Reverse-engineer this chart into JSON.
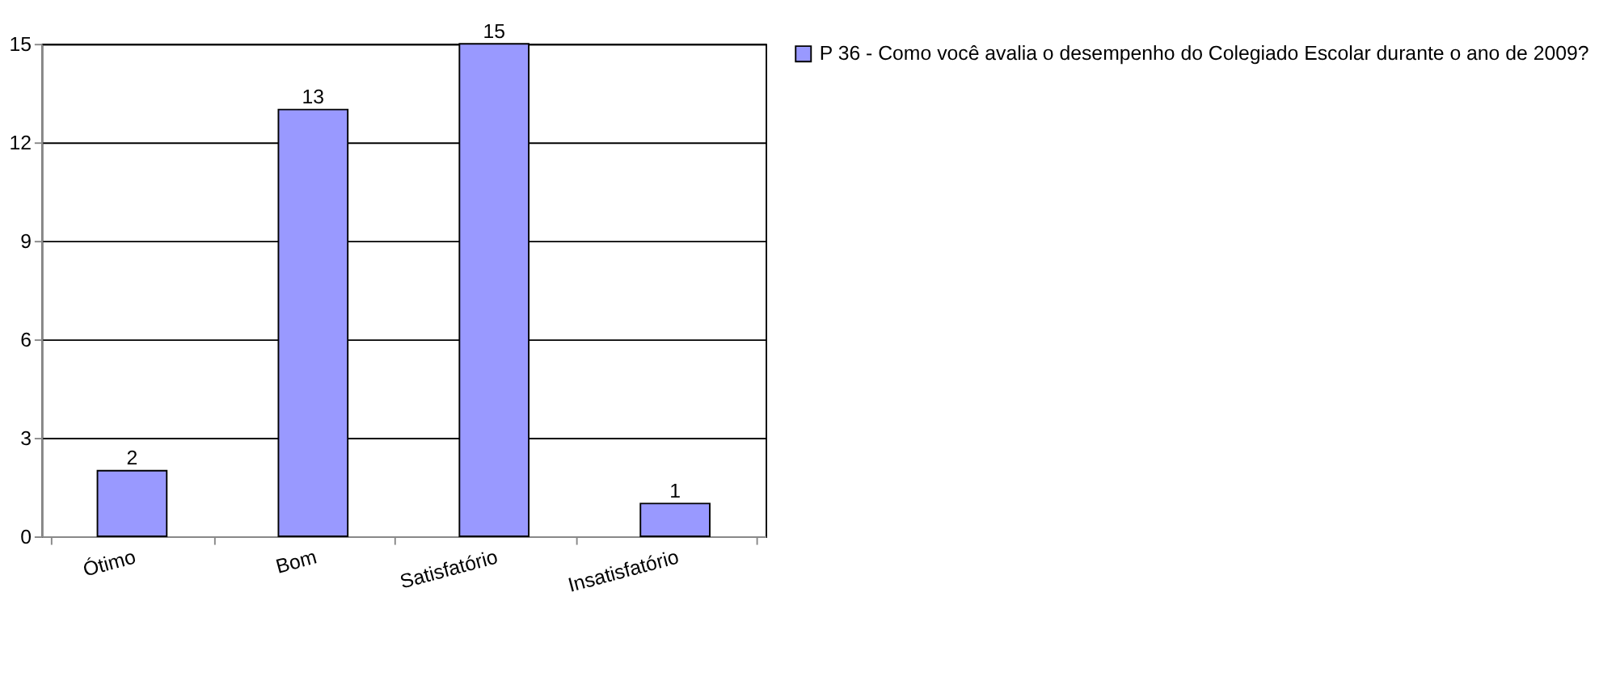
{
  "chart_data": {
    "type": "bar",
    "categories": [
      "Ótimo",
      "Bom",
      "Satisfatório",
      "Insatisfatório"
    ],
    "series": [
      {
        "name": "P 36 - Como você avalia o desempenho do Colegiado Escolar durante o ano de 2009?",
        "color": "#9999ff",
        "values": [
          2,
          13,
          15,
          1
        ]
      }
    ],
    "ylim": [
      0,
      15
    ],
    "yticks": [
      0,
      3,
      6,
      9,
      12,
      15
    ],
    "grid": "y",
    "legend": "right",
    "data_labels": true
  }
}
